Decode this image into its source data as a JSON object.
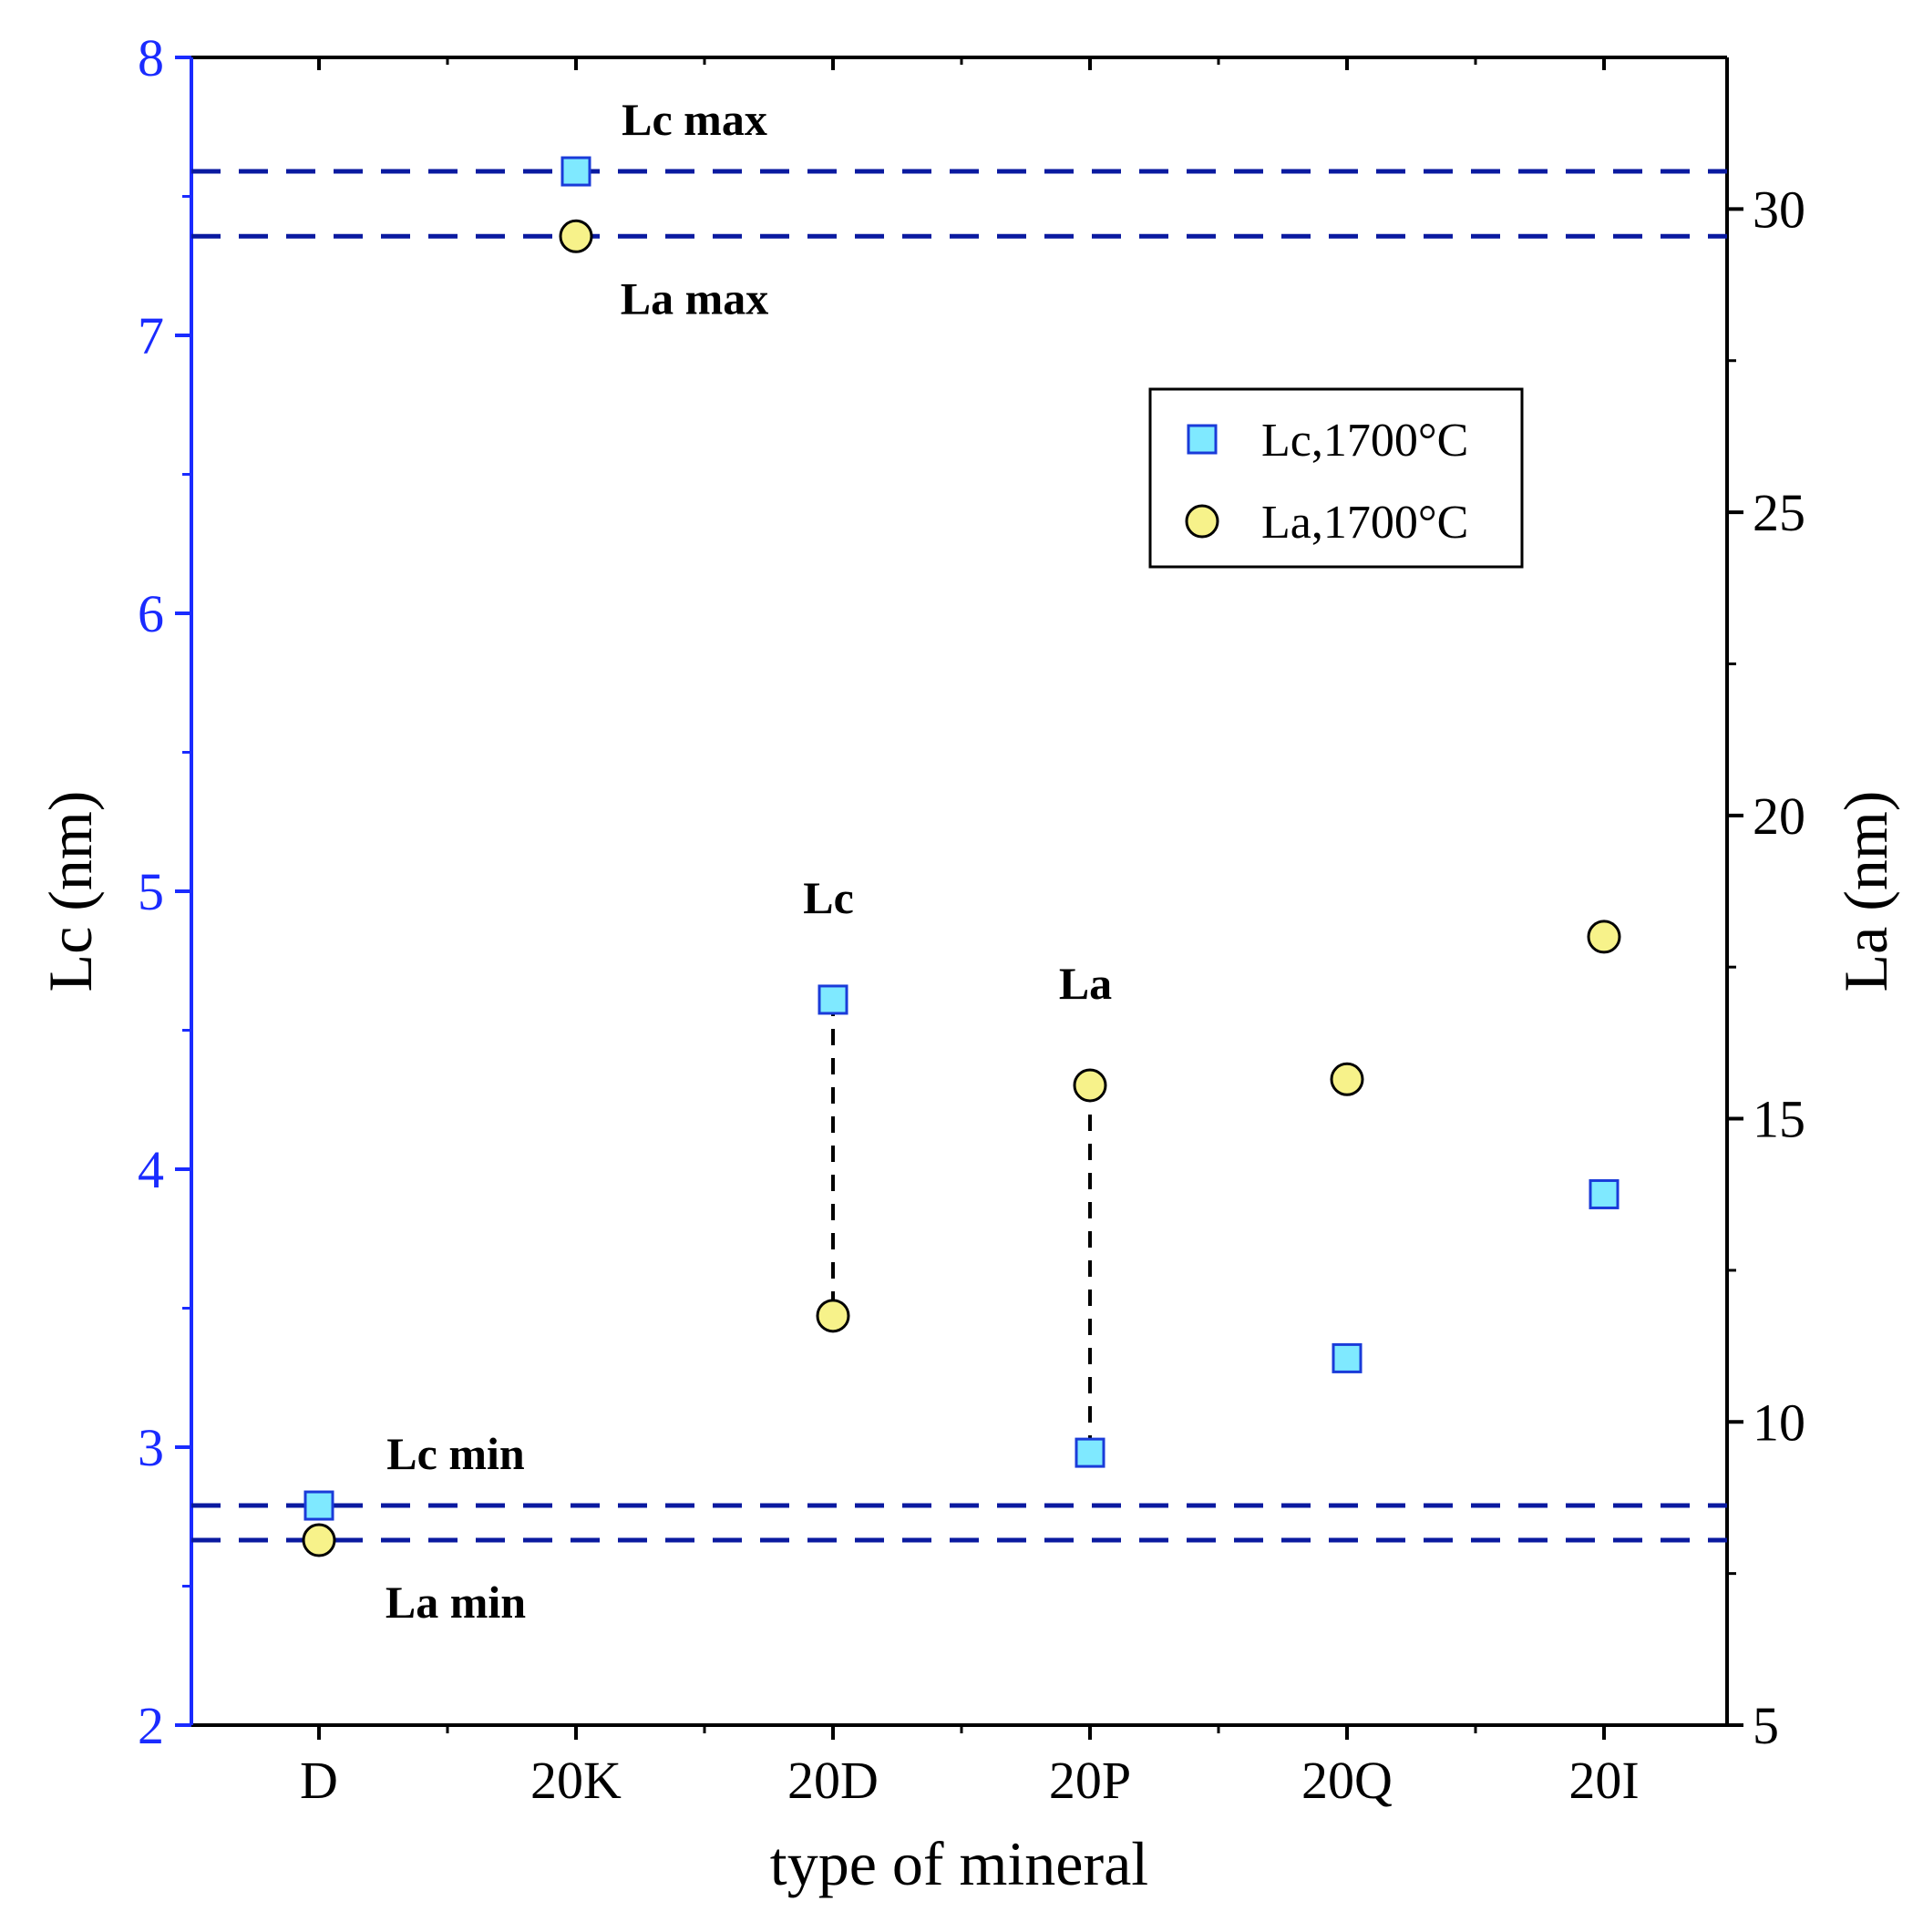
{
  "chart_data": {
    "type": "scatter",
    "categories": [
      "D",
      "20K",
      "20D",
      "20P",
      "20Q",
      "20I"
    ],
    "xlabel": "type of mineral",
    "ylabel_left": "Lc (nm)",
    "ylabel_right": "La (nm)",
    "ylim_left": [
      2,
      8
    ],
    "ylim_right": [
      5,
      32.5
    ],
    "yticks_left": [
      2,
      3,
      4,
      5,
      6,
      7,
      8
    ],
    "yticks_right": [
      5,
      10,
      15,
      20,
      25,
      30
    ],
    "left_axis_color": "#1a2bff",
    "series": [
      {
        "name": "Lc,1700°C",
        "axis": "left",
        "marker": "square",
        "color": "#7fe9ff",
        "values": [
          2.79,
          7.59,
          4.61,
          2.98,
          3.32,
          3.91
        ]
      },
      {
        "name": "La,1700°C",
        "axis": "right",
        "marker": "circle",
        "color": "#f7f28a",
        "values": [
          8.05,
          29.55,
          11.75,
          15.55,
          15.65,
          18.0
        ]
      }
    ],
    "reference_lines": [
      {
        "axis": "left",
        "value": 7.59,
        "label": "Lc max",
        "label_side": "above",
        "category": "20K"
      },
      {
        "axis": "right",
        "value": 29.55,
        "label": "La max",
        "label_side": "below",
        "category": "20K"
      },
      {
        "axis": "left",
        "value": 2.79,
        "label": "Lc min",
        "label_side": "above",
        "category": "D"
      },
      {
        "axis": "right",
        "value": 8.05,
        "label": "La min",
        "label_side": "below",
        "category": "D"
      }
    ],
    "reference_line_color": "#0a1aa0",
    "connectors": [
      {
        "category": "20D",
        "from_series": 0,
        "to_series": 1,
        "label": "Lc"
      },
      {
        "category": "20P",
        "from_series": 1,
        "to_series": 0,
        "label": "La"
      }
    ],
    "legend_position": "upper-right inside"
  }
}
